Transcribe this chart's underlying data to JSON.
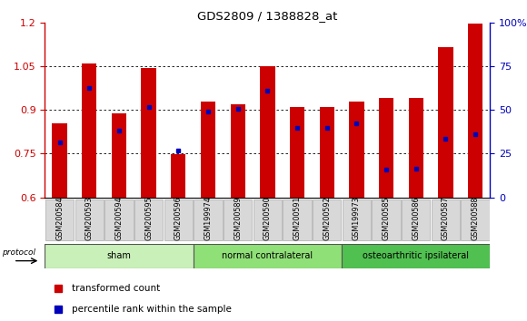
{
  "title": "GDS2809 / 1388828_at",
  "samples": [
    "GSM200584",
    "GSM200593",
    "GSM200594",
    "GSM200595",
    "GSM200596",
    "GSM199974",
    "GSM200589",
    "GSM200590",
    "GSM200591",
    "GSM200592",
    "GSM199973",
    "GSM200585",
    "GSM200586",
    "GSM200587",
    "GSM200588"
  ],
  "red_values": [
    0.855,
    1.06,
    0.887,
    1.045,
    0.748,
    0.93,
    0.92,
    1.05,
    0.91,
    0.91,
    0.93,
    0.94,
    0.94,
    1.115,
    1.195
  ],
  "blue_values": [
    0.79,
    0.975,
    0.83,
    0.91,
    0.762,
    0.895,
    0.905,
    0.965,
    0.84,
    0.84,
    0.855,
    0.695,
    0.7,
    0.8,
    0.818
  ],
  "groups": [
    {
      "label": "sham",
      "start": 0,
      "end": 5,
      "color": "#c8f0b8"
    },
    {
      "label": "normal contralateral",
      "start": 5,
      "end": 10,
      "color": "#90e078"
    },
    {
      "label": "osteoarthritic ipsilateral",
      "start": 10,
      "end": 15,
      "color": "#50c050"
    }
  ],
  "ylim_left": [
    0.6,
    1.2
  ],
  "ylim_right": [
    0,
    100
  ],
  "yticks_left": [
    0.6,
    0.75,
    0.9,
    1.05,
    1.2
  ],
  "yticks_right": [
    0,
    25,
    50,
    75,
    100
  ],
  "left_color": "#cc0000",
  "right_color": "#0000bb",
  "bar_color": "#cc0000",
  "blue_dot_color": "#0000bb",
  "bar_width": 0.5,
  "background_color": "#ffffff",
  "grid_color": "#000000",
  "protocol_label": "protocol",
  "legend_red": "transformed count",
  "legend_blue": "percentile rank within the sample"
}
